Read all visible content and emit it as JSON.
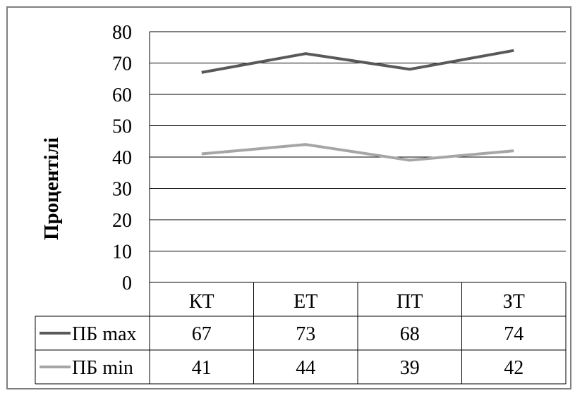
{
  "chart_data": {
    "type": "line",
    "title": "",
    "xlabel": "",
    "ylabel": "Процентілі",
    "ylim": [
      0,
      80
    ],
    "yticks": [
      0,
      10,
      20,
      30,
      40,
      50,
      60,
      70,
      80
    ],
    "grid": true,
    "legend": "data-table",
    "categories": [
      "КТ",
      "ЕТ",
      "ПТ",
      "ЗТ"
    ],
    "series": [
      {
        "name": "ПБ max",
        "values": [
          67,
          73,
          68,
          74
        ],
        "color": "#595959",
        "label_values": [
          "67",
          "73",
          "68",
          "74"
        ]
      },
      {
        "name": "ПБ min",
        "values": [
          41,
          44,
          39,
          42
        ],
        "color": "#a6a6a6",
        "label_values": [
          "41",
          "44",
          "39",
          "42"
        ]
      }
    ]
  },
  "colors": {
    "border": "#7f7f7f",
    "grid": "#000000",
    "text": "#000000"
  }
}
